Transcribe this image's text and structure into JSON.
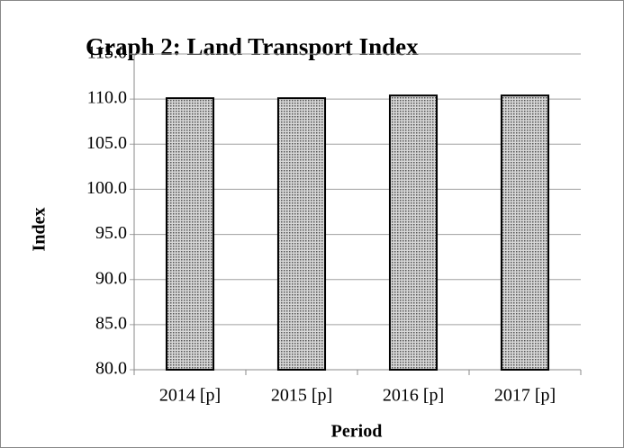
{
  "chart_data": {
    "type": "bar",
    "title": "Graph 2: Land Transport Index",
    "x_label": "Period",
    "y_label": "Index",
    "categories": [
      "2014 [p]",
      "2015 [p]",
      "2016 [p]",
      "2017 [p]"
    ],
    "values": [
      110.1,
      110.1,
      110.4,
      110.4
    ],
    "color": "#999999",
    "ylim": [
      80,
      115
    ],
    "yticks": [
      {
        "value": 80,
        "label": "80.0"
      },
      {
        "value": 85,
        "label": "85.0"
      },
      {
        "value": 90,
        "label": "90.0"
      },
      {
        "value": 95,
        "label": "95.0"
      },
      {
        "value": 100,
        "label": "100.0"
      },
      {
        "value": 105,
        "label": "105.0"
      },
      {
        "value": 110,
        "label": "110.0"
      },
      {
        "value": 115,
        "label": "115.0"
      }
    ],
    "grid": true
  }
}
